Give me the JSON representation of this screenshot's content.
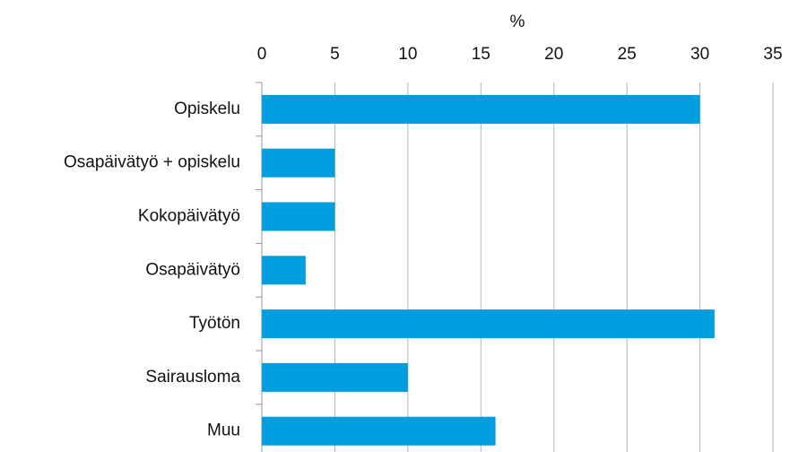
{
  "chart_data": {
    "type": "bar",
    "orientation": "horizontal",
    "x_label": "%",
    "categories": [
      "Opiskelu",
      "Osapäivätyö + opiskelu",
      "Kokopäivätyö",
      "Osapäivätyö ",
      "Työtön",
      "Sairausloma",
      "Muu"
    ],
    "values": [
      30,
      5,
      5,
      3,
      31,
      10,
      16
    ],
    "color": "#009ddf",
    "xlim": [
      0,
      35
    ],
    "xticks": [
      0,
      5,
      10,
      15,
      20,
      25,
      30,
      35
    ],
    "grid": true
  }
}
